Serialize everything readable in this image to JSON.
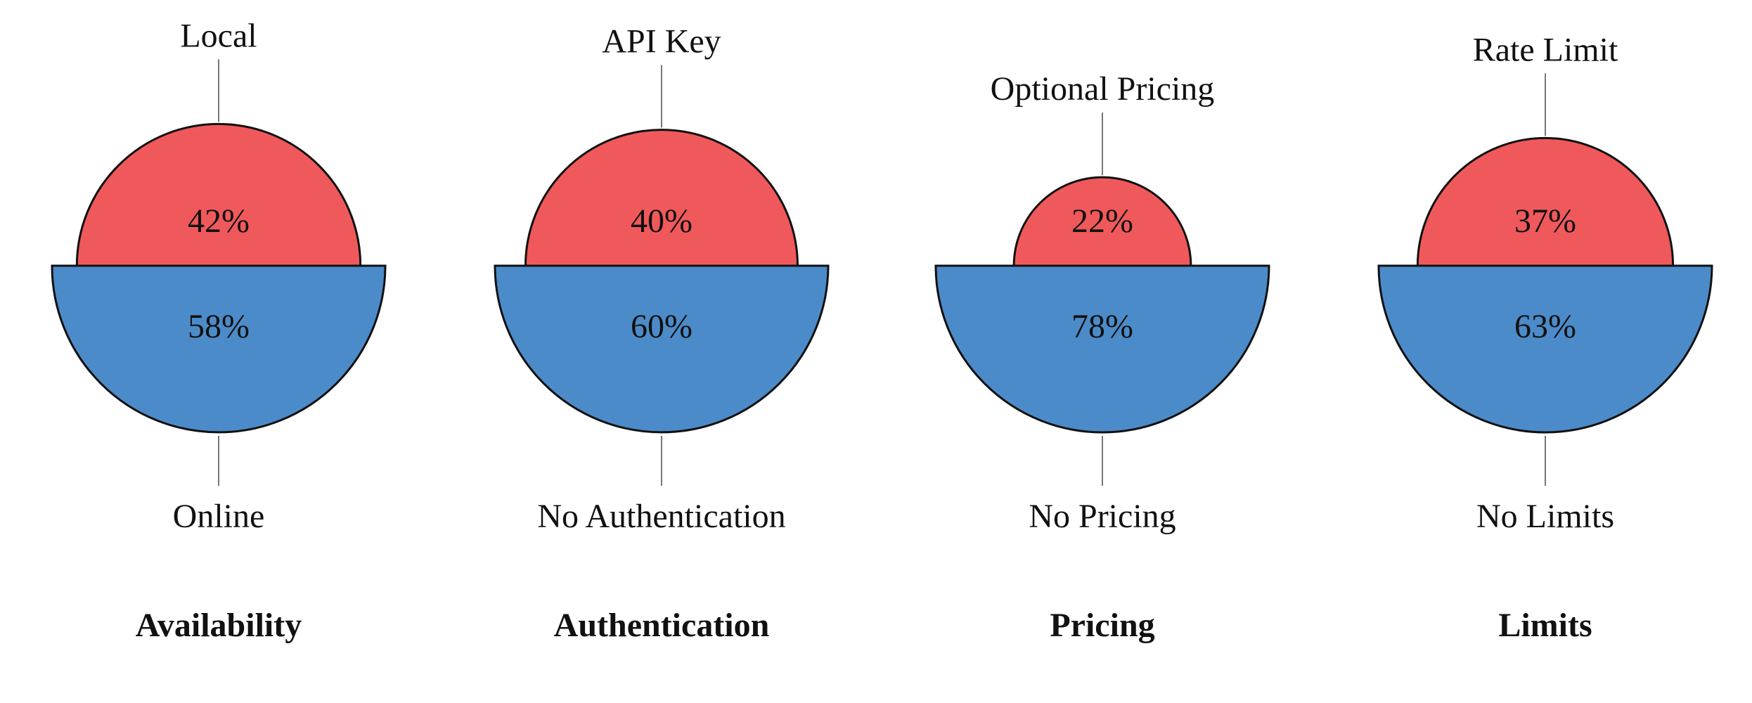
{
  "chart_data": {
    "type": "pie",
    "colors": {
      "top": "#F0595B",
      "bottom": "#4C8BC9"
    },
    "charts": [
      {
        "title": "Availability",
        "top_label": "Local",
        "top_value": 42,
        "top_text": "42%",
        "bottom_label": "Online",
        "bottom_value": 58,
        "bottom_text": "58%"
      },
      {
        "title": "Authentication",
        "top_label": "API Key",
        "top_value": 40,
        "top_text": "40%",
        "bottom_label": "No Authentication",
        "bottom_value": 60,
        "bottom_text": "60%"
      },
      {
        "title": "Pricing",
        "top_label": "Optional Pricing",
        "top_value": 22,
        "top_text": "22%",
        "bottom_label": "No Pricing",
        "bottom_value": 78,
        "bottom_text": "78%"
      },
      {
        "title": "Limits",
        "top_label": "Rate Limit",
        "top_value": 37,
        "top_text": "37%",
        "bottom_label": "No Limits",
        "bottom_value": 63,
        "bottom_text": "63%"
      }
    ]
  }
}
